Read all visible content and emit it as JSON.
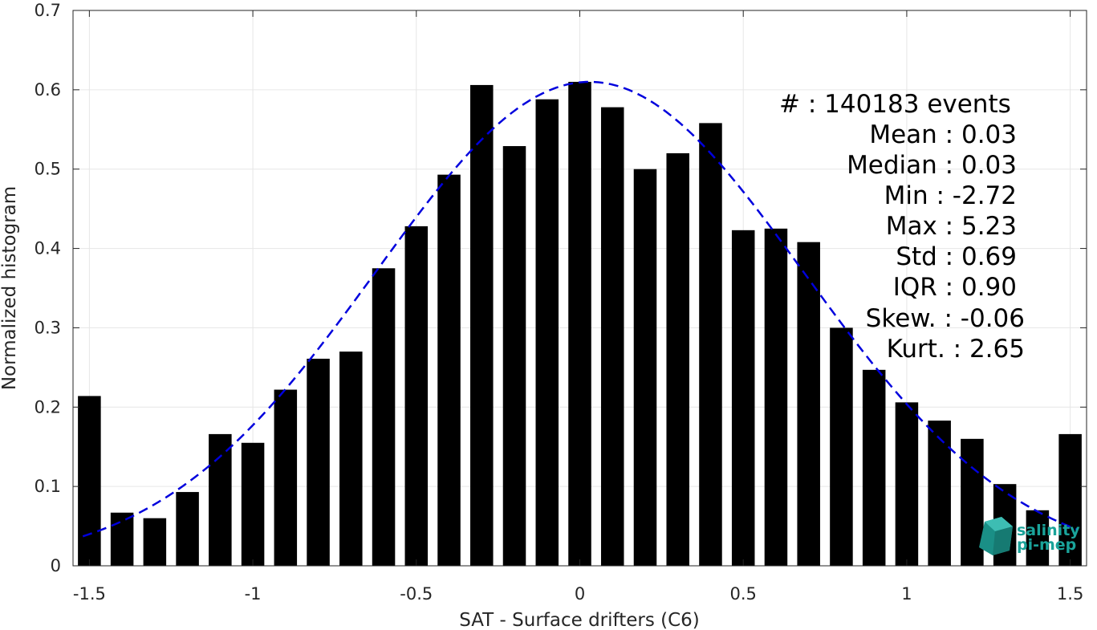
{
  "chart_data": {
    "type": "bar",
    "xlabel": "SAT - Surface drifters (C6)",
    "ylabel": "Normalized histogram",
    "xlim": [
      -1.55,
      1.55
    ],
    "ylim": [
      0,
      0.7
    ],
    "grid": true,
    "x_ticks": [
      -1.5,
      -1,
      -0.5,
      0,
      0.5,
      1,
      1.5
    ],
    "x_tick_labels": [
      "-1.5",
      "-1",
      "-0.5",
      "0",
      "0.5",
      "1",
      "1.5"
    ],
    "y_ticks": [
      0,
      0.1,
      0.2,
      0.3,
      0.4,
      0.5,
      0.6,
      0.7
    ],
    "y_tick_labels": [
      "0",
      "0.1",
      "0.2",
      "0.3",
      "0.4",
      "0.5",
      "0.6",
      "0.7"
    ],
    "bar_color": "#000000",
    "bar_width": 0.07,
    "x": [
      -1.5,
      -1.4,
      -1.3,
      -1.2,
      -1.1,
      -1.0,
      -0.9,
      -0.8,
      -0.7,
      -0.6,
      -0.5,
      -0.4,
      -0.3,
      -0.2,
      -0.1,
      0.0,
      0.1,
      0.2,
      0.3,
      0.4,
      0.5,
      0.6,
      0.7,
      0.8,
      0.9,
      1.0,
      1.1,
      1.2,
      1.3,
      1.4,
      1.5
    ],
    "values": [
      0.214,
      0.067,
      0.06,
      0.093,
      0.166,
      0.155,
      0.222,
      0.261,
      0.27,
      0.375,
      0.428,
      0.493,
      0.606,
      0.529,
      0.588,
      0.61,
      0.578,
      0.5,
      0.52,
      0.558,
      0.423,
      0.425,
      0.408,
      0.3,
      0.247,
      0.206,
      0.183,
      0.16,
      0.103,
      0.07,
      0.166
    ],
    "fit_curve": {
      "style": "dashed",
      "color": "#0000dd",
      "mean": 0.03,
      "std": 0.655,
      "x_range": [
        -1.52,
        1.52
      ]
    },
    "annotations": [
      "#  : 140183 events",
      "Mean : 0.03",
      "Median : 0.03",
      "Min : -2.72",
      "Max : 5.23",
      "Std : 0.69",
      "IQR : 0.90",
      "Skew. : -0.06",
      "Kurt. : 2.65"
    ]
  },
  "logo": {
    "line1": "salinity",
    "line2": "pi-mep",
    "color": "#1aa39a"
  }
}
